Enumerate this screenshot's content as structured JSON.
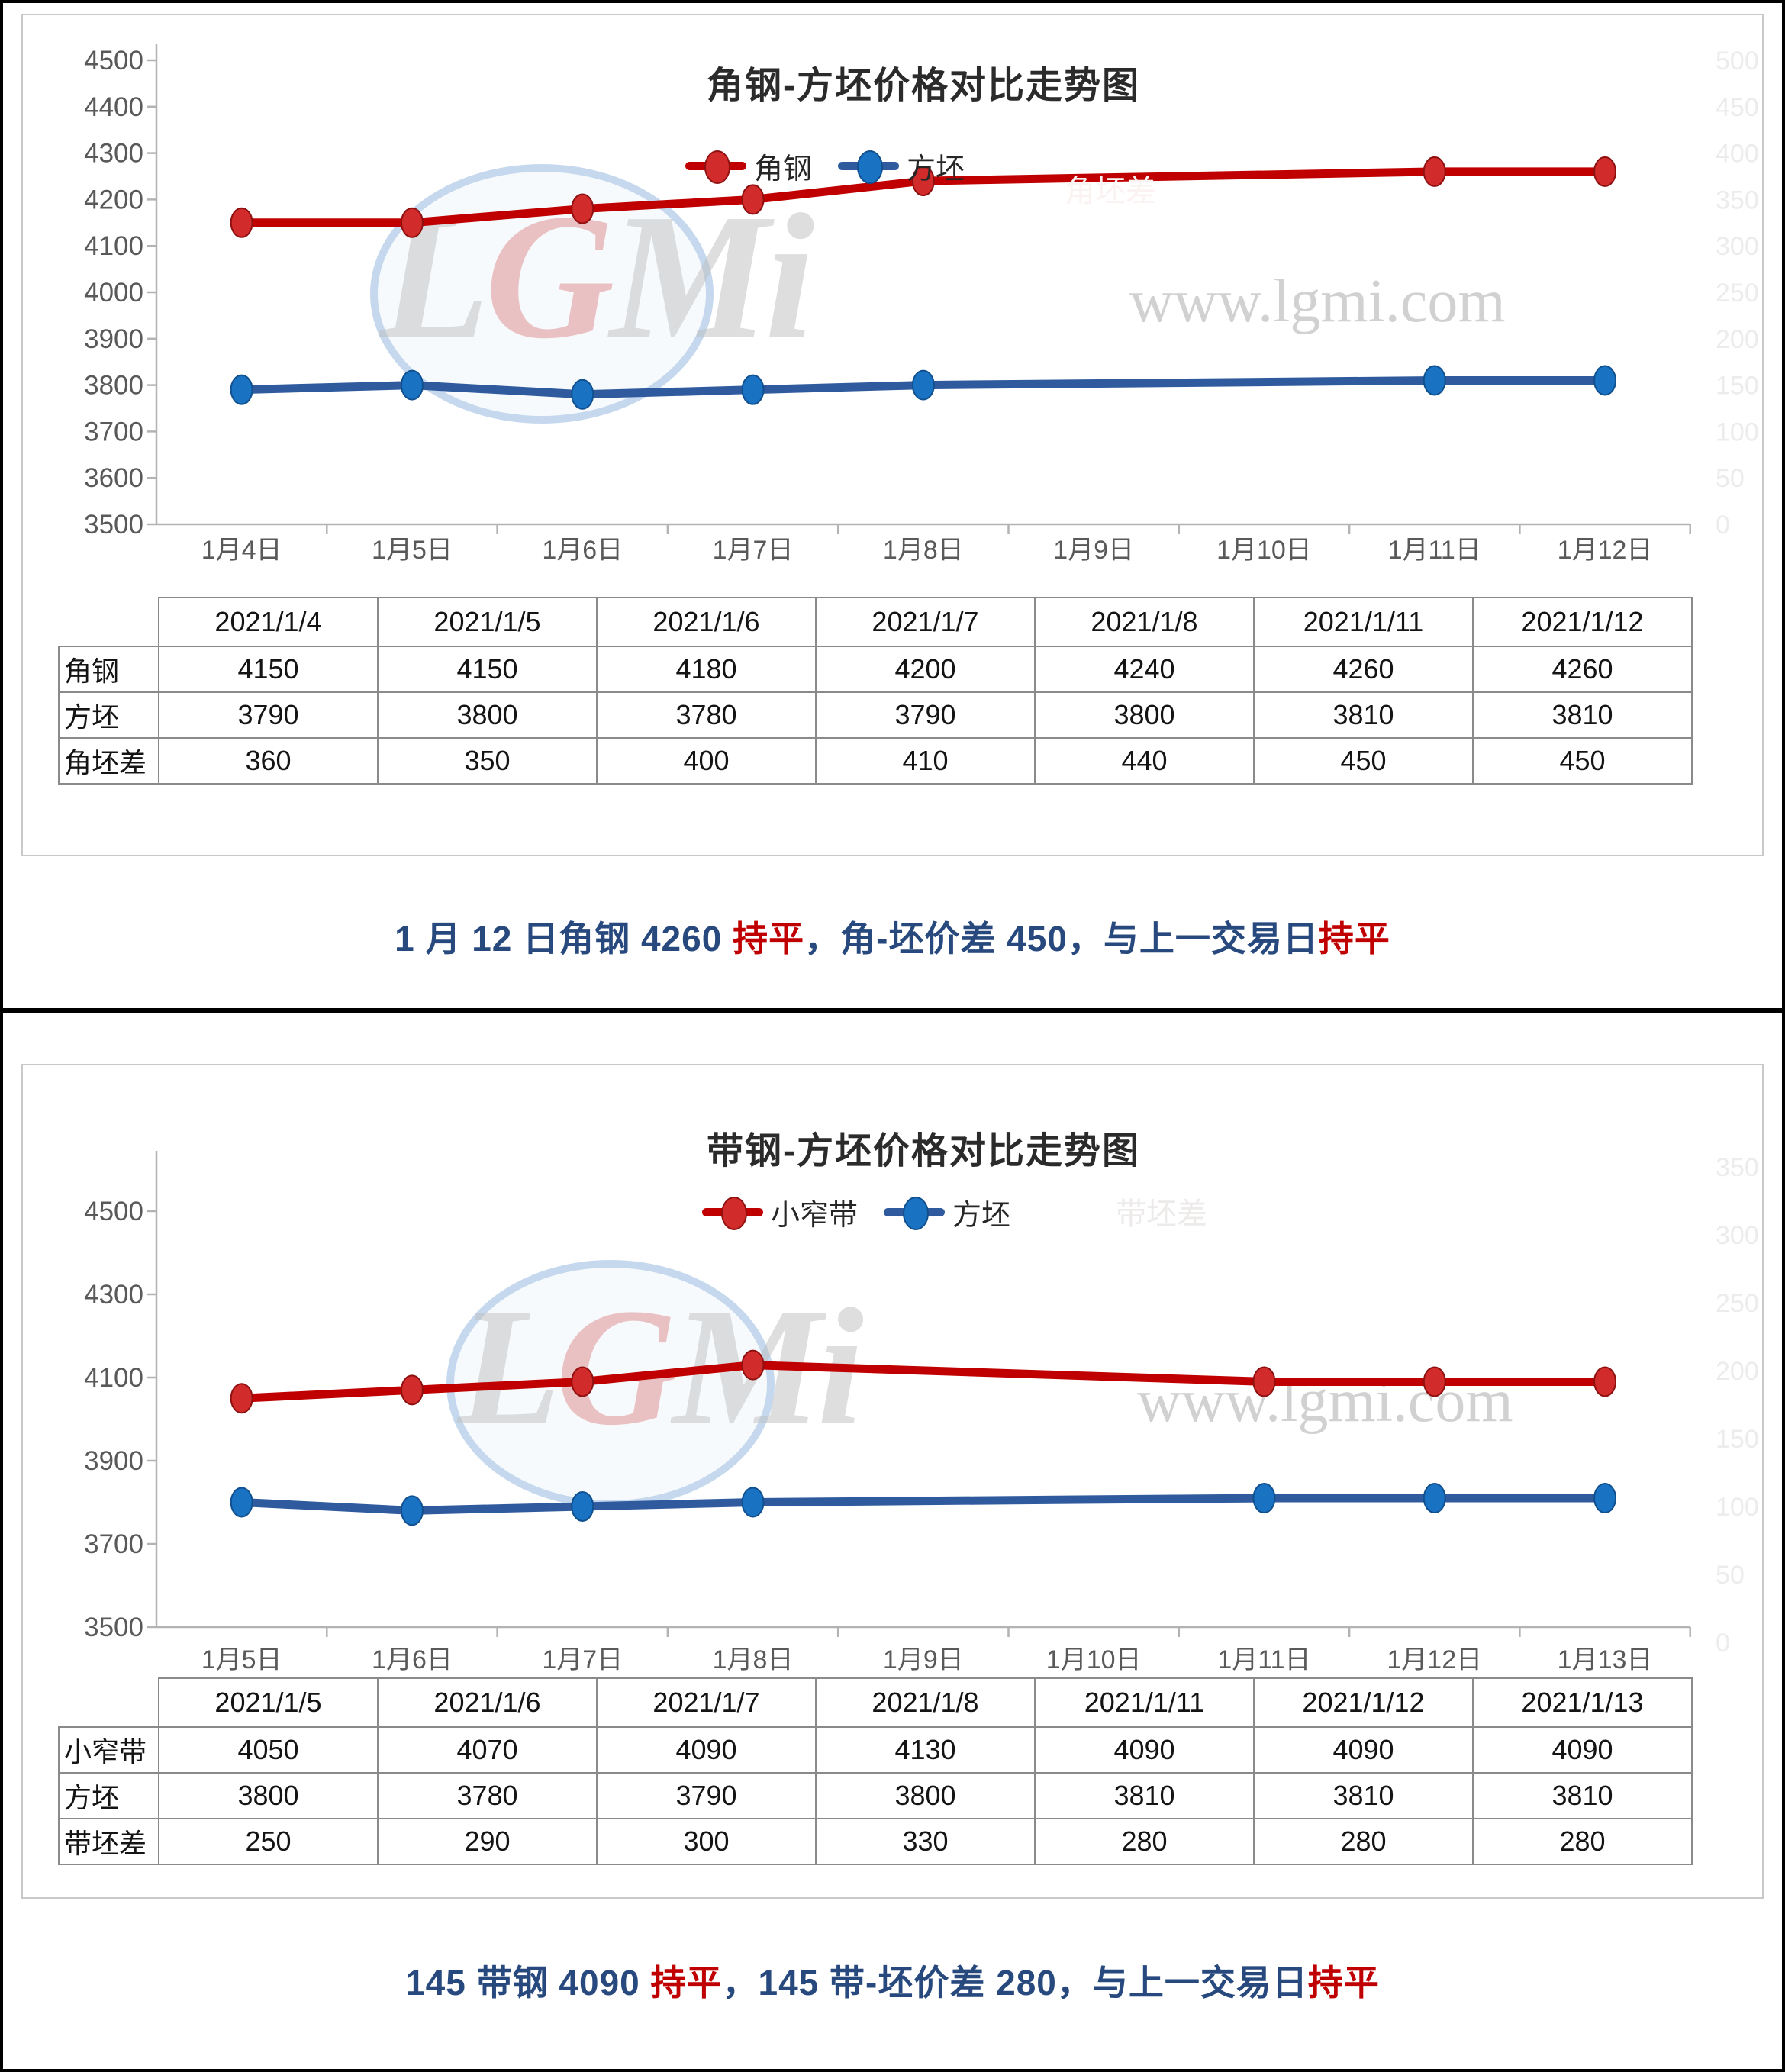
{
  "page": {
    "background": "#ffffff",
    "border_color": "#000000"
  },
  "caption_colors": {
    "blue": "#27497e",
    "red": "#c00000"
  },
  "blocks": [
    {
      "title": "角钢-方坯价格对比走势图",
      "legend": [
        {
          "label": "角钢",
          "line_color": "#c00000",
          "marker_color": "#d22b2b",
          "marker_edge": "#8f1010"
        },
        {
          "label": "方坯",
          "line_color": "#2f5b9e",
          "marker_color": "#1a72c2",
          "marker_edge": "#10508f"
        }
      ],
      "hidden_legend_label": "角坯差",
      "watermark": {
        "logo_text": "LGMi",
        "site_text": "www.lgmi.com"
      },
      "table": {
        "corner_label": "",
        "col_headers": [
          "2021/1/4",
          "2021/1/5",
          "2021/1/6",
          "2021/1/7",
          "2021/1/8",
          "2021/1/11",
          "2021/1/12"
        ],
        "rows": [
          {
            "header": "角钢",
            "values": [
              "4150",
              "4150",
              "4180",
              "4200",
              "4240",
              "4260",
              "4260"
            ]
          },
          {
            "header": "方坯",
            "values": [
              "3790",
              "3800",
              "3780",
              "3790",
              "3800",
              "3810",
              "3810"
            ]
          },
          {
            "header": "角坯差",
            "values": [
              "360",
              "350",
              "400",
              "410",
              "440",
              "450",
              "450"
            ]
          }
        ]
      },
      "caption": [
        {
          "text": "1 月 12 日角钢 4260 ",
          "color": "blue"
        },
        {
          "text": "持平",
          "color": "red"
        },
        {
          "text": "，角-坯价差 450，与上一交易日",
          "color": "blue"
        },
        {
          "text": "持平",
          "color": "red"
        }
      ]
    },
    {
      "title": "带钢-方坯价格对比走势图",
      "legend": [
        {
          "label": "小窄带",
          "line_color": "#c00000",
          "marker_color": "#d22b2b",
          "marker_edge": "#8f1010"
        },
        {
          "label": "方坯",
          "line_color": "#2f5b9e",
          "marker_color": "#1a72c2",
          "marker_edge": "#10508f"
        }
      ],
      "hidden_legend_label": "带坯差",
      "watermark": {
        "logo_text": "LGMi",
        "site_text": "www.lgmi.com"
      },
      "table": {
        "corner_label": "",
        "col_headers": [
          "2021/1/5",
          "2021/1/6",
          "2021/1/7",
          "2021/1/8",
          "2021/1/11",
          "2021/1/12",
          "2021/1/13"
        ],
        "rows": [
          {
            "header": "小窄带",
            "values": [
              "4050",
              "4070",
              "4090",
              "4130",
              "4090",
              "4090",
              "4090"
            ]
          },
          {
            "header": "方坯",
            "values": [
              "3800",
              "3780",
              "3790",
              "3800",
              "3810",
              "3810",
              "3810"
            ]
          },
          {
            "header": "带坯差",
            "values": [
              "250",
              "290",
              "300",
              "330",
              "280",
              "280",
              "280"
            ]
          }
        ]
      },
      "caption": [
        {
          "text": "145 带钢 4090 ",
          "color": "blue"
        },
        {
          "text": "持平",
          "color": "red"
        },
        {
          "text": "，145 带-坯价差 280，与上一交易日",
          "color": "blue"
        },
        {
          "text": "持平",
          "color": "red"
        }
      ]
    }
  ],
  "chart_data": [
    {
      "type": "line",
      "title": "角钢-方坯价格对比走势图",
      "categories": [
        "1月4日",
        "1月5日",
        "1月6日",
        "1月7日",
        "1月8日",
        "1月9日",
        "1月10日",
        "1月11日",
        "1月12日"
      ],
      "series": [
        {
          "name": "角钢",
          "color": "#c00000",
          "marker": "#d22b2b",
          "marker_edge": "#8f1010",
          "values": [
            4150,
            4150,
            4180,
            4200,
            4240,
            null,
            null,
            4260,
            4260
          ]
        },
        {
          "name": "方坯",
          "color": "#2f5b9e",
          "marker": "#1a72c2",
          "marker_edge": "#10508f",
          "values": [
            3790,
            3800,
            3780,
            3790,
            3800,
            null,
            null,
            3810,
            3810
          ]
        }
      ],
      "ylim": [
        3500,
        4500
      ],
      "y_ticks": [
        4500,
        4400,
        4300,
        4200,
        4100,
        4000,
        3900,
        3800,
        3700,
        3600,
        3500
      ],
      "secondary_y_ticks": [
        "500",
        "450",
        "400",
        "350",
        "300",
        "250",
        "200",
        "150",
        "100",
        "50",
        "0"
      ],
      "grid": false,
      "legend_position": "top-center",
      "xlabel": "",
      "ylabel": ""
    },
    {
      "type": "line",
      "title": "带钢-方坯价格对比走势图",
      "categories": [
        "1月5日",
        "1月6日",
        "1月7日",
        "1月8日",
        "1月9日",
        "1月10日",
        "1月11日",
        "1月12日",
        "1月13日"
      ],
      "series": [
        {
          "name": "小窄带",
          "color": "#c00000",
          "marker": "#d22b2b",
          "marker_edge": "#8f1010",
          "values": [
            4050,
            4070,
            4090,
            4130,
            null,
            null,
            4090,
            4090,
            4090
          ]
        },
        {
          "name": "方坯",
          "color": "#2f5b9e",
          "marker": "#1a72c2",
          "marker_edge": "#10508f",
          "values": [
            3800,
            3780,
            3790,
            3800,
            null,
            null,
            3810,
            3810,
            3810
          ]
        }
      ],
      "ylim": [
        3500,
        4500
      ],
      "y_ticks": [
        4500,
        4300,
        4100,
        3900,
        3700,
        3500
      ],
      "secondary_y_ticks": [
        "350",
        "300",
        "250",
        "200",
        "150",
        "100",
        "50",
        "0"
      ],
      "grid": false,
      "legend_position": "top-center",
      "xlabel": "",
      "ylabel": ""
    }
  ]
}
